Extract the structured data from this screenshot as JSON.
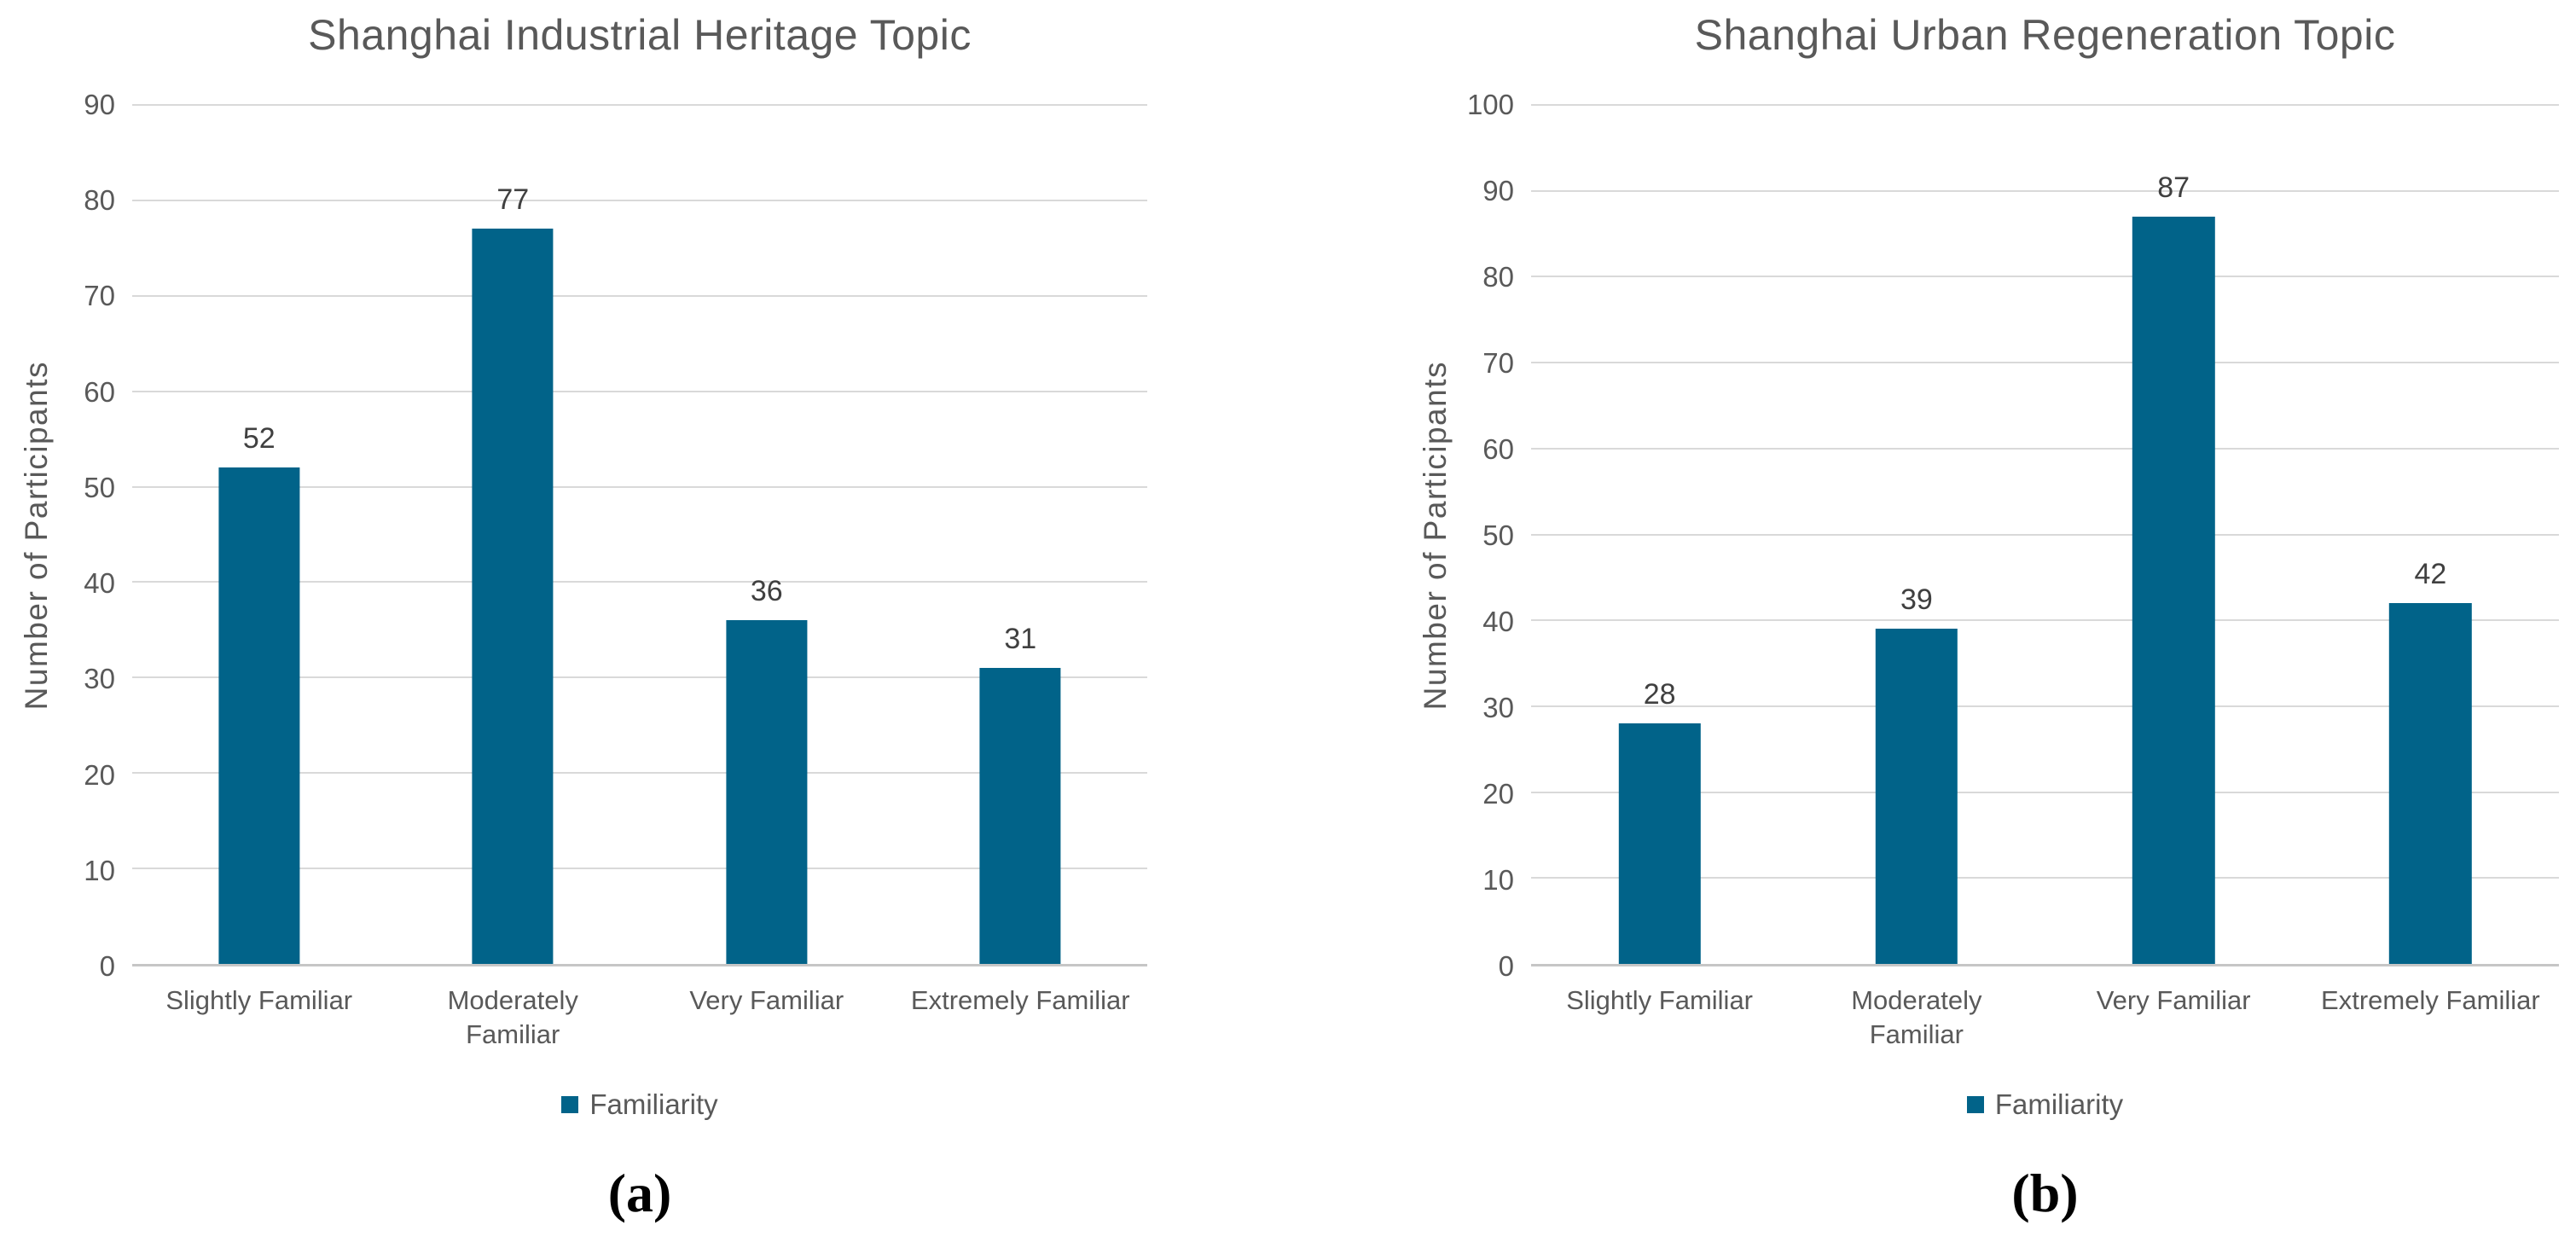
{
  "colors": {
    "bar": "#016389",
    "grid": "#D9D9D9",
    "axis_line": "#C6C6C6",
    "text_gray": "#595959",
    "data_label": "#404040",
    "caption": "#000000",
    "background": "#FFFFFF"
  },
  "chart_data": [
    {
      "type": "bar",
      "title": "Shanghai Industrial Heritage Topic",
      "ylabel": "Number of Participants",
      "xlabel": "",
      "categories": [
        "Slightly Familiar",
        "Moderately Familiar",
        "Very Familiar",
        "Extremely Familiar"
      ],
      "values": [
        52,
        77,
        36,
        31
      ],
      "ylim": [
        0,
        90
      ],
      "ytick_interval": 10,
      "grid": "horizontal",
      "legend_label": "Familiarity",
      "legend_position": "bottom",
      "panel_label": "(a)"
    },
    {
      "type": "bar",
      "title": "Shanghai Urban Regeneration Topic",
      "ylabel": "Number of Participants",
      "xlabel": "",
      "categories": [
        "Slightly Familiar",
        "Moderately Familiar",
        "Very Familiar",
        "Extremely Familiar"
      ],
      "values": [
        28,
        39,
        87,
        42
      ],
      "ylim": [
        0,
        100
      ],
      "ytick_interval": 10,
      "grid": "horizontal",
      "legend_label": "Familiarity",
      "legend_position": "bottom",
      "panel_label": "(b)"
    }
  ]
}
